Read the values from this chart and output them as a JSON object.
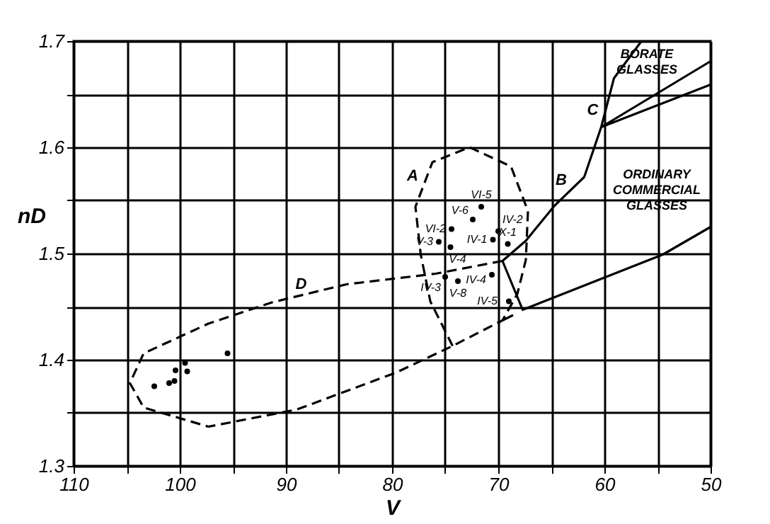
{
  "chart_data": {
    "type": "scatter",
    "xlabel": "V",
    "ylabel": "nD",
    "xlim": [
      110,
      50
    ],
    "ylim": [
      1.3,
      1.7
    ],
    "xticks": [
      110,
      {
        "value": 105,
        "label": null
      },
      100,
      {
        "value": 95,
        "label": null
      },
      90,
      {
        "value": 85,
        "label": null
      },
      80,
      {
        "value": 75,
        "label": null
      },
      70,
      {
        "value": 65,
        "label": null
      },
      60,
      {
        "value": 55,
        "label": null
      },
      50
    ],
    "yticks": [
      1.3,
      {
        "value": 1.35,
        "label": null
      },
      1.4,
      {
        "value": 1.45,
        "label": null
      },
      1.5,
      {
        "value": 1.55,
        "label": null
      },
      1.6,
      {
        "value": 1.65,
        "label": null
      },
      1.7
    ],
    "grid": true,
    "series": [
      {
        "color": "#000000",
        "marker": "circle",
        "x": [
          71.6,
          72.4,
          74.4,
          70.0,
          75.6,
          70.5,
          69.1,
          74.5,
          75.0,
          73.8,
          70.6,
          69.0,
          102.4,
          101.0,
          100.5,
          100.4,
          99.5,
          99.3,
          95.5
        ],
        "values": [
          1.544,
          1.532,
          1.523,
          1.521,
          1.511,
          1.513,
          1.509,
          1.506,
          1.478,
          1.474,
          1.48,
          1.455,
          1.375,
          1.378,
          1.38,
          1.39,
          1.397,
          1.389,
          1.406
        ]
      },
      {
        "type": "line",
        "color": "#000000",
        "line_style": "dashed",
        "x": [
          74.3,
          76.4,
          77.3,
          77.8,
          76.2,
          72.7,
          68.8,
          67.2,
          67.4,
          68.2,
          69.6
        ],
        "values": [
          1.413,
          1.455,
          1.499,
          1.544,
          1.586,
          1.6,
          1.582,
          1.54,
          1.494,
          1.462,
          1.437
        ]
      },
      {
        "type": "line",
        "color": "#000000",
        "line_style": "dashed",
        "x": [
          69.6,
          75.9,
          84.3,
          91.3,
          97.3,
          103.4,
          104.7,
          103.4,
          97.3,
          89.0,
          79.6,
          74.3,
          69.6
        ],
        "values": [
          1.493,
          1.481,
          1.471,
          1.454,
          1.434,
          1.406,
          1.378,
          1.355,
          1.337,
          1.353,
          1.388,
          1.413,
          1.437
        ]
      },
      {
        "type": "line",
        "color": "#000000",
        "line_style": "solid",
        "x": [
          56.5,
          59.1,
          60.3,
          61.9,
          64.7,
          67.4,
          69.6,
          67.7,
          54.5,
          50
        ],
        "values": [
          1.7,
          1.665,
          1.619,
          1.572,
          1.545,
          1.512,
          1.493,
          1.447,
          1.499,
          1.525
        ]
      },
      {
        "type": "line",
        "color": "#000000",
        "line_style": "solid",
        "x": [
          50,
          60.3,
          50
        ],
        "values": [
          1.681,
          1.619,
          1.659
        ]
      },
      {
        "type": "line",
        "color": "#000000",
        "line_style": "solid",
        "x": [
          69.6,
          68.6
        ],
        "values": [
          1.437,
          1.442
        ]
      }
    ],
    "annotations": [
      {
        "text": "VI-5",
        "x": 71.6,
        "y": 1.544
      },
      {
        "text": "V-6",
        "x": 72.4,
        "y": 1.532
      },
      {
        "text": "VI-2",
        "x": 74.4,
        "y": 1.523
      },
      {
        "text": "IV-2",
        "x": 70.0,
        "y": 1.521
      },
      {
        "text": "V-3",
        "x": 75.6,
        "y": 1.511
      },
      {
        "text": "IV-1",
        "x": 70.5,
        "y": 1.513
      },
      {
        "text": "X-1",
        "x": 69.1,
        "y": 1.509
      },
      {
        "text": "V-4",
        "x": 74.5,
        "y": 1.506
      },
      {
        "text": "IV-3",
        "x": 75.0,
        "y": 1.478
      },
      {
        "text": "V-8",
        "x": 73.8,
        "y": 1.474
      },
      {
        "text": "IV-4",
        "x": 70.6,
        "y": 1.48
      },
      {
        "text": "IV-5",
        "x": 69.0,
        "y": 1.455
      },
      {
        "text": "A",
        "x": 77.0,
        "y": 1.565
      },
      {
        "text": "B",
        "x": 63.0,
        "y": 1.561
      },
      {
        "text": "C",
        "x": 59.9,
        "y": 1.635
      },
      {
        "text": "D",
        "x": 87.5,
        "y": 1.463
      },
      "BORATE GLASSES",
      "ORDINARY COMMERCIAL GLASSES"
    ]
  }
}
